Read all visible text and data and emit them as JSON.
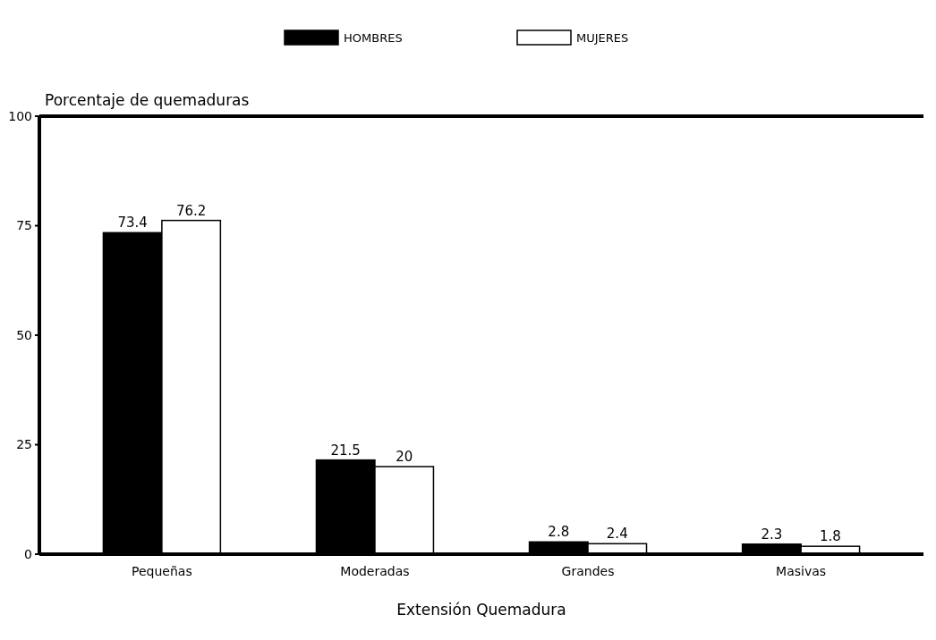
{
  "chart_data": {
    "type": "bar",
    "ylabel": "Porcentaje de quemaduras",
    "xlabel": "Extensión Quemadura",
    "categories": [
      "Pequeñas",
      "Moderadas",
      "Grandes",
      "Masivas"
    ],
    "series": [
      {
        "name": "HOMBRES",
        "color": "#000000",
        "values": [
          73.4,
          21.5,
          2.8,
          2.3
        ]
      },
      {
        "name": "MUJERES",
        "color": "#ffffff",
        "values": [
          76.2,
          20,
          2.4,
          1.8
        ]
      }
    ],
    "ylim": [
      0,
      100
    ],
    "yticks": [
      0,
      25,
      50,
      75,
      100
    ],
    "data_labels": true,
    "legend": "top",
    "grid": false
  }
}
